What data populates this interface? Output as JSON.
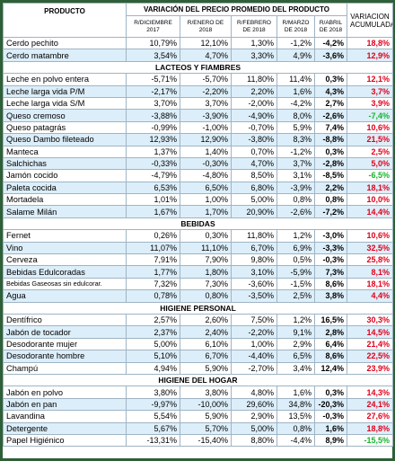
{
  "header": {
    "product": "PRODUCTO",
    "title": "VARIACIÓN DEL PRECIO PROMEDIO DEL PRODUCTO",
    "columns": [
      "R/DICIEMBRE 2017",
      "R/ENERO DE 2018",
      "R/FEBRERO DE 2018",
      "R/MARZO DE 2018",
      "R/ABRIL DE 2018"
    ],
    "accumulated": "VARIACION ACUMULADA"
  },
  "groups": [
    {
      "rows": [
        [
          "Cerdo pechito",
          "10,79%",
          "12,10%",
          "1,30%",
          "-1,2%",
          "-4,2%",
          "18,8%"
        ],
        [
          "Cerdo matambre",
          "3,54%",
          "4,70%",
          "3,30%",
          "4,9%",
          "-3,6%",
          "12,9%"
        ]
      ]
    },
    {
      "title": "LACTEOS Y FIAMBRES",
      "rows": [
        [
          "Leche en polvo entera",
          "-5,71%",
          "-5,70%",
          "11,80%",
          "11,4%",
          "0,3%",
          "12,1%"
        ],
        [
          "Leche larga vida P/M",
          "-2,17%",
          "-2,20%",
          "2,20%",
          "1,6%",
          "4,3%",
          "3,7%"
        ],
        [
          "Leche larga vida S/M",
          "3,70%",
          "3,70%",
          "-2,00%",
          "-4,2%",
          "2,7%",
          "3,9%"
        ],
        [
          "Queso cremoso",
          "-3,88%",
          "-3,90%",
          "-4,90%",
          "8,0%",
          "-2,6%",
          "-7,4%"
        ],
        [
          "Queso patagrás",
          "-0,99%",
          "-1,00%",
          "-0,70%",
          "5,9%",
          "7,4%",
          "10,6%"
        ],
        [
          "Queso Dambo fileteado",
          "12,93%",
          "12,90%",
          "-3,80%",
          "8,3%",
          "-8,8%",
          "21,5%"
        ],
        [
          "Manteca",
          "1,37%",
          "1,40%",
          "0,70%",
          "-1,2%",
          "0,3%",
          "2,5%"
        ],
        [
          "Salchichas",
          "-0,33%",
          "-0,30%",
          "4,70%",
          "3,7%",
          "-2,8%",
          "5,0%"
        ],
        [
          "Jamón cocido",
          "-4,79%",
          "-4,80%",
          "8,50%",
          "3,1%",
          "-8,5%",
          "-6,5%"
        ],
        [
          "Paleta cocida",
          "6,53%",
          "6,50%",
          "6,80%",
          "-3,9%",
          "2,2%",
          "18,1%"
        ],
        [
          "Mortadela",
          "1,01%",
          "1,00%",
          "5,00%",
          "0,8%",
          "0,8%",
          "10,0%"
        ],
        [
          "Salame Milán",
          "1,67%",
          "1,70%",
          "20,90%",
          "-2,6%",
          "-7,2%",
          "14,4%"
        ]
      ]
    },
    {
      "title": "BEBIDAS",
      "rows": [
        [
          "Fernet",
          "0,26%",
          "0,30%",
          "11,80%",
          "1,2%",
          "-3,0%",
          "10,6%"
        ],
        [
          "Vino",
          "11,07%",
          "11,10%",
          "6,70%",
          "6,9%",
          "-3,3%",
          "32,5%"
        ],
        [
          "Cerveza",
          "7,91%",
          "7,90%",
          "9,80%",
          "0,5%",
          "-0,3%",
          "25,8%"
        ],
        [
          "Bebidas Edulcoradas",
          "1,77%",
          "1,80%",
          "3,10%",
          "-5,9%",
          "7,3%",
          "8,1%"
        ],
        [
          "Bebidas Gaseosas sin edulcorar.",
          "7,32%",
          "7,30%",
          "-3,60%",
          "-1,5%",
          "8,6%",
          "18,1%"
        ],
        [
          "Agua",
          "0,78%",
          "0,80%",
          "-3,50%",
          "2,5%",
          "3,8%",
          "4,4%"
        ]
      ]
    },
    {
      "title": "HIGIENE PERSONAL",
      "rows": [
        [
          "Dentífrico",
          "2,57%",
          "2,60%",
          "7,50%",
          "1,2%",
          "16,5%",
          "30,3%"
        ],
        [
          "Jabón de tocador",
          "2,37%",
          "2,40%",
          "-2,20%",
          "9,1%",
          "2,8%",
          "14,5%"
        ],
        [
          "Desodorante mujer",
          "5,00%",
          "6,10%",
          "1,00%",
          "2,9%",
          "6,4%",
          "21,4%"
        ],
        [
          "Desodorante hombre",
          "5,10%",
          "6,70%",
          "-4,40%",
          "6,5%",
          "8,6%",
          "22,5%"
        ],
        [
          "Champú",
          "4,94%",
          "5,90%",
          "-2,70%",
          "3,4%",
          "12,4%",
          "23,9%"
        ]
      ]
    },
    {
      "title": "HIGIENE DEL HOGAR",
      "rows": [
        [
          "Jabón en polvo",
          "3,80%",
          "3,80%",
          "4,80%",
          "1,6%",
          "0,3%",
          "14,3%"
        ],
        [
          "Jabón en pan",
          "-9,97%",
          "-10,00%",
          "29,60%",
          "34,8%",
          "-20,3%",
          "24,1%"
        ],
        [
          "Lavandina",
          "5,54%",
          "5,90%",
          "2,90%",
          "13,5%",
          "-0,3%",
          "27,6%"
        ],
        [
          "Detergente",
          "5,67%",
          "5,70%",
          "5,00%",
          "0,8%",
          "1,6%",
          "18,8%"
        ],
        [
          "Papel  Higiénico",
          "-13,31%",
          "-15,40%",
          "8,80%",
          "-4,4%",
          "8,9%",
          "-15,5%"
        ]
      ]
    }
  ]
}
